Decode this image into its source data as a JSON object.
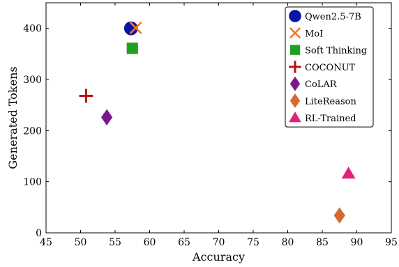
{
  "chart_data": {
    "type": "scatter",
    "title": "",
    "xlabel": "Accuracy",
    "ylabel": "Generated Tokens",
    "xlim": [
      45,
      95
    ],
    "ylim": [
      0,
      450
    ],
    "xticks": [
      45,
      50,
      55,
      60,
      65,
      70,
      75,
      80,
      85,
      90,
      95
    ],
    "yticks": [
      0,
      100,
      200,
      300,
      400
    ],
    "grid": false,
    "legend_position": "top-right",
    "series": [
      {
        "name": "Qwen2.5-7B",
        "marker": "circle",
        "color": "#0a14a6",
        "points": [
          {
            "x": 57.3,
            "y": 400
          }
        ]
      },
      {
        "name": "MoI",
        "marker": "x",
        "color": "#f07a22",
        "points": [
          {
            "x": 58.0,
            "y": 401
          }
        ]
      },
      {
        "name": "Soft Thinking",
        "marker": "square",
        "color": "#20a020",
        "points": [
          {
            "x": 57.5,
            "y": 361
          }
        ]
      },
      {
        "name": "COCONUT",
        "marker": "plus",
        "color": "#b41414",
        "points": [
          {
            "x": 50.8,
            "y": 268
          }
        ]
      },
      {
        "name": "CoLAR",
        "marker": "diamond",
        "color": "#7a1a8a",
        "points": [
          {
            "x": 53.8,
            "y": 226
          }
        ]
      },
      {
        "name": "LiteReason",
        "marker": "diamond",
        "color": "#d46a2e",
        "points": [
          {
            "x": 87.5,
            "y": 34
          }
        ]
      },
      {
        "name": "RL-Trained",
        "marker": "triangle",
        "color": "#e0207a",
        "points": [
          {
            "x": 88.8,
            "y": 116
          }
        ]
      }
    ]
  }
}
